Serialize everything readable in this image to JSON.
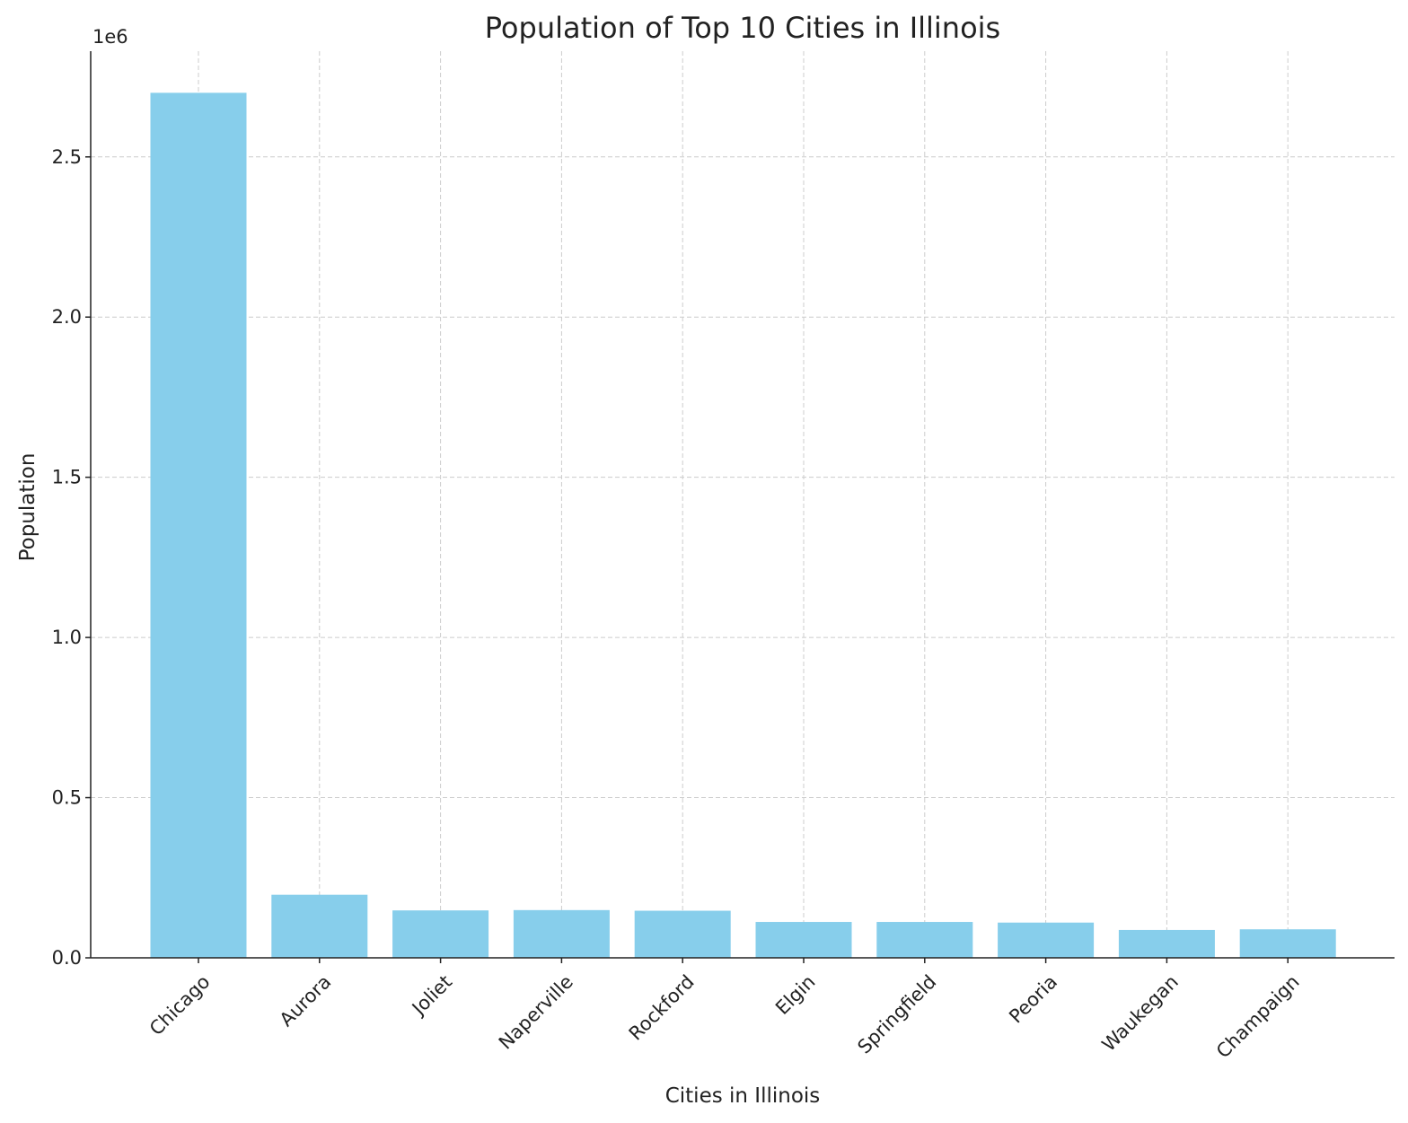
{
  "chart_data": {
    "type": "bar",
    "title": "Population of Top 10 Cities in Illinois",
    "xlabel": "Cities in Illinois",
    "ylabel": "Population",
    "y_offset_label": "1e6",
    "categories": [
      "Chicago",
      "Aurora",
      "Joliet",
      "Naperville",
      "Rockford",
      "Elgin",
      "Springfield",
      "Peoria",
      "Waukegan",
      "Champaign"
    ],
    "values": [
      2700000,
      197000,
      148000,
      149000,
      147000,
      112000,
      112000,
      110000,
      87000,
      89000
    ],
    "ylim": [
      0,
      2830000
    ],
    "yticks": [
      0,
      500000,
      1000000,
      1500000,
      2000000,
      2500000
    ],
    "ytick_labels": [
      "0.0",
      "0.5",
      "1.0",
      "1.5",
      "2.0",
      "2.5"
    ],
    "grid": true,
    "bar_color": "#87ceeb",
    "x_tick_rotation": 45
  }
}
